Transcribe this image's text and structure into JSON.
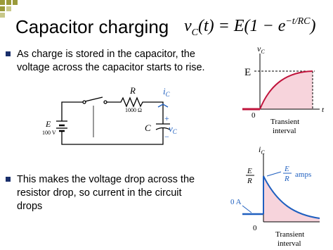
{
  "slide": {
    "title": "Capacitor charging",
    "formula": [
      "v",
      "C",
      "(t) = E(1 − e",
      "−t/RC",
      ")"
    ],
    "bullets": [
      [
        "As charge is stored in the capacitor, the",
        "voltage across the capacitor starts to rise."
      ],
      [
        "This makes the voltage drop across the",
        "resistor drop, so current in the circuit",
        "drops"
      ]
    ]
  },
  "circuit": {
    "resistor": "R",
    "resistance": "1000 Ω",
    "current": [
      "i",
      "C"
    ],
    "plus": "+",
    "voltage": [
      "v",
      "C"
    ],
    "minus": "−",
    "source": "E",
    "source_value": "100 V",
    "capacitor": "C"
  },
  "graph1": {
    "y_label": [
      "v",
      "C"
    ],
    "level": "E",
    "origin": "0",
    "x_label": "t",
    "interval": [
      "Transient",
      "interval"
    ]
  },
  "graph2": {
    "y_label": [
      "i",
      "C"
    ],
    "level": [
      "E",
      "R"
    ],
    "level_note": [
      "E",
      "R",
      "amps"
    ],
    "zero_note": "0 A",
    "origin": "0",
    "interval": [
      "Transient",
      "interval"
    ]
  }
}
